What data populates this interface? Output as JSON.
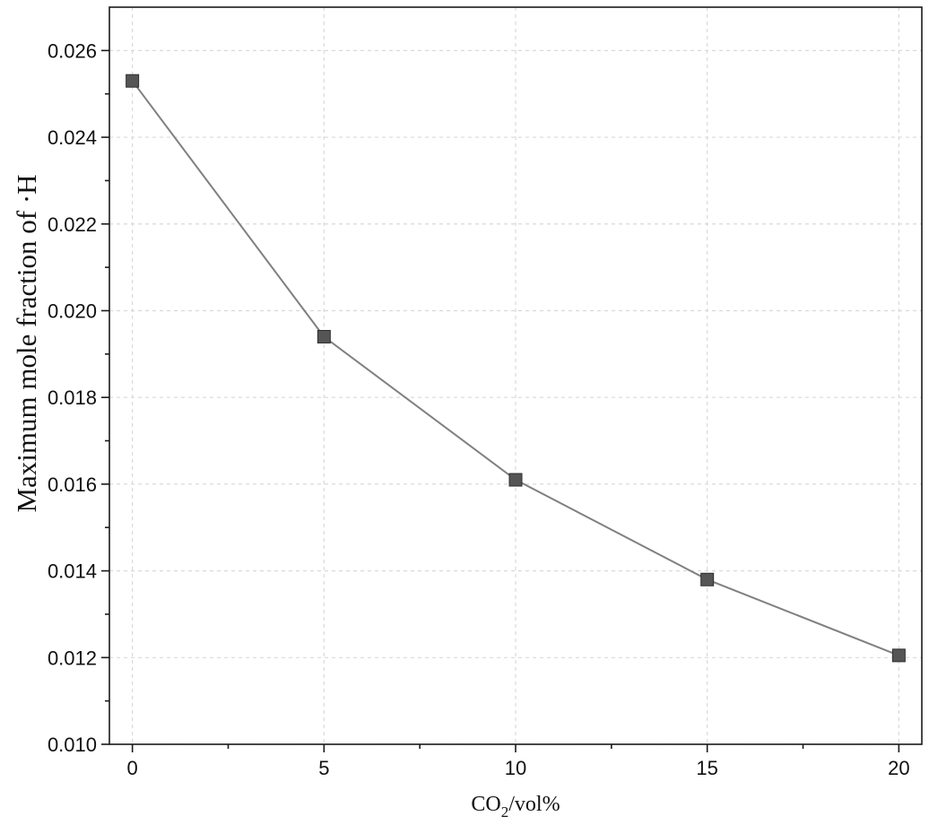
{
  "chart_data": {
    "type": "line",
    "title": "",
    "xlabel": "CO2/vol%",
    "xlabel_parts": {
      "base": "CO",
      "sub": "2",
      "rest": "/vol%"
    },
    "ylabel": "Maximum mole fraction of ·H",
    "x": [
      0,
      5,
      10,
      15,
      20
    ],
    "series": [
      {
        "values": [
          0.0253,
          0.0194,
          0.0161,
          0.0138,
          0.01205
        ]
      }
    ],
    "xlim": [
      -0.6,
      20.6
    ],
    "ylim": [
      0.01,
      0.027
    ],
    "xticks": [
      0,
      5,
      10,
      15,
      20
    ],
    "xtick_labels": [
      "0",
      "5",
      "10",
      "15",
      "20"
    ],
    "yticks": [
      0.01,
      0.012,
      0.014,
      0.016,
      0.018,
      0.02,
      0.022,
      0.024,
      0.026
    ],
    "ytick_labels": [
      "0.010",
      "0.012",
      "0.014",
      "0.016",
      "0.018",
      "0.020",
      "0.022",
      "0.024",
      "0.026"
    ],
    "grid": true,
    "marker": "square",
    "line_color": "#808080",
    "marker_color": "#555555",
    "grid_color": "#d9d9d9"
  }
}
